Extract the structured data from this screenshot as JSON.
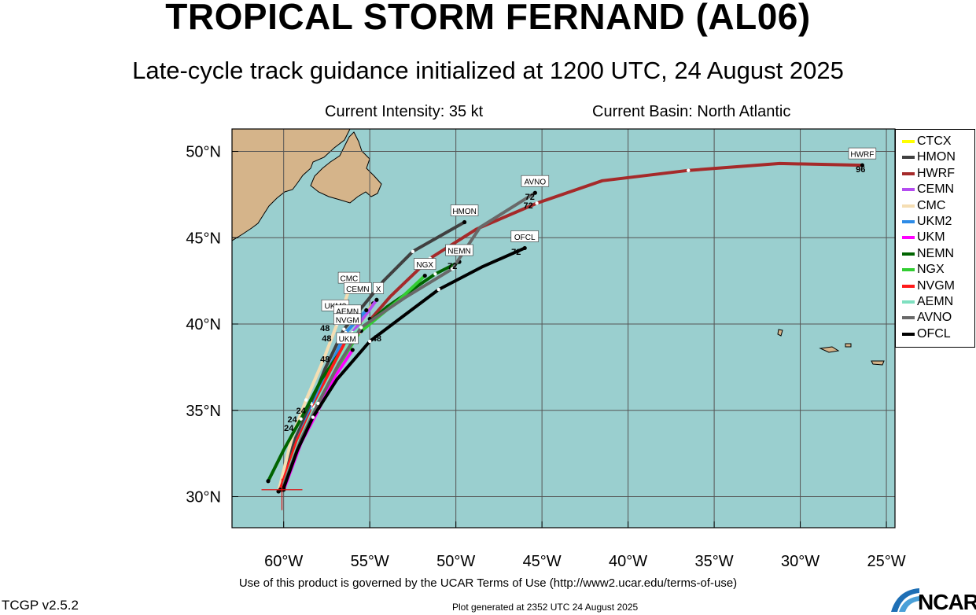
{
  "title": "TROPICAL STORM FERNAND (AL06)",
  "subtitle": "Late-cycle track guidance initialized at 1200 UTC, 24 August 2025",
  "current_intensity": "Current Intensity: 35 kt",
  "current_basin": "Current Basin: North Atlantic",
  "footer_terms": "Use of this product is governed by the UCAR Terms of Use (http://www2.ucar.edu/terms-of-use)",
  "version": "TCGP v2.5.2",
  "generated": "Plot generated at 2352 UTC   24 August 2025",
  "logo_text": "NCAR",
  "map": {
    "lon_range": [
      -63,
      -24.5
    ],
    "lat_range": [
      28.2,
      51.3
    ],
    "lat_ticks": [
      {
        "v": 30,
        "label": "30°N"
      },
      {
        "v": 35,
        "label": "35°N"
      },
      {
        "v": 40,
        "label": "40°N"
      },
      {
        "v": 45,
        "label": "45°N"
      },
      {
        "v": 50,
        "label": "50°N"
      }
    ],
    "lon_ticks": [
      {
        "v": -60,
        "label": "60°W"
      },
      {
        "v": -55,
        "label": "55°W"
      },
      {
        "v": -50,
        "label": "50°W"
      },
      {
        "v": -45,
        "label": "45°W"
      },
      {
        "v": -40,
        "label": "40°W"
      },
      {
        "v": -35,
        "label": "35°W"
      },
      {
        "v": -30,
        "label": "30°W"
      },
      {
        "v": -25,
        "label": "25°W"
      }
    ],
    "ocean_color": "#9acfcf",
    "land_color": "#d5b48a",
    "init_position": {
      "lon": -60.1,
      "lat": 30.4
    }
  },
  "models": [
    {
      "name": "CTCX",
      "color": "#ffff00",
      "track": [
        [
          -60.0,
          30.5
        ],
        [
          -59.2,
          33.2
        ],
        [
          -58.3,
          35.0
        ],
        [
          -57.2,
          37.5
        ],
        [
          -56.0,
          39.4
        ],
        [
          -54.8,
          41.2
        ]
      ]
    },
    {
      "name": "HMON",
      "color": "#404040",
      "track": [
        [
          -60.3,
          30.3
        ],
        [
          -59.3,
          33.4
        ],
        [
          -58.4,
          35.4
        ],
        [
          -57.6,
          37.4
        ],
        [
          -56.5,
          39.7
        ],
        [
          -54.2,
          42.5
        ],
        [
          -52.5,
          44.2
        ],
        [
          -49.5,
          45.9
        ]
      ],
      "label_hour": "72"
    },
    {
      "name": "HWRF",
      "color": "#a52a2a",
      "track": [
        [
          -60.2,
          30.4
        ],
        [
          -59.1,
          33.3
        ],
        [
          -58.0,
          35.3
        ],
        [
          -57.0,
          37.3
        ],
        [
          -55.8,
          39.3
        ],
        [
          -53.8,
          41.6
        ],
        [
          -51.5,
          43.8
        ],
        [
          -48.8,
          45.5
        ],
        [
          -45.3,
          47.0
        ],
        [
          -41.5,
          48.3
        ],
        [
          -36.5,
          48.9
        ],
        [
          -31.2,
          49.3
        ],
        [
          -26.4,
          49.2
        ]
      ],
      "label_hour": "96"
    },
    {
      "name": "CEMN",
      "color": "#b44cf0",
      "track": [
        [
          -60.0,
          30.5
        ],
        [
          -59.1,
          33.2
        ],
        [
          -58.2,
          35.2
        ],
        [
          -57.2,
          37.2
        ],
        [
          -56.0,
          39.5
        ],
        [
          -54.6,
          41.4
        ]
      ]
    },
    {
      "name": "CMC",
      "color": "#f5deb3",
      "track": [
        [
          -60.3,
          30.3
        ],
        [
          -59.5,
          33.5
        ],
        [
          -58.7,
          35.6
        ],
        [
          -57.7,
          37.9
        ],
        [
          -56.9,
          40.0
        ],
        [
          -56.2,
          42.0
        ]
      ]
    },
    {
      "name": "UKM2",
      "color": "#2e8be6",
      "track": [
        [
          -60.1,
          30.4
        ],
        [
          -59.2,
          33.3
        ],
        [
          -58.3,
          35.3
        ],
        [
          -57.4,
          37.3
        ],
        [
          -56.4,
          39.5
        ],
        [
          -55.2,
          40.8
        ]
      ]
    },
    {
      "name": "UKM",
      "color": "#ff00ff",
      "track": [
        [
          -60.0,
          30.4
        ],
        [
          -59.0,
          33.1
        ],
        [
          -58.0,
          35.0
        ],
        [
          -57.0,
          37.0
        ],
        [
          -56.0,
          38.5
        ]
      ]
    },
    {
      "name": "NEMN",
      "color": "#006400",
      "track": [
        [
          -60.9,
          30.9
        ],
        [
          -60.0,
          32.7
        ],
        [
          -59.0,
          34.5
        ],
        [
          -57.8,
          36.8
        ],
        [
          -56.3,
          39.0
        ],
        [
          -54.0,
          41.0
        ],
        [
          -51.2,
          42.9
        ],
        [
          -49.8,
          43.6
        ]
      ],
      "label_hour": "72"
    },
    {
      "name": "NGX",
      "color": "#32cd32",
      "track": [
        [
          -60.1,
          30.4
        ],
        [
          -59.2,
          33.2
        ],
        [
          -58.2,
          35.2
        ],
        [
          -57.0,
          37.3
        ],
        [
          -55.6,
          39.5
        ],
        [
          -53.3,
          41.4
        ],
        [
          -51.8,
          42.8
        ]
      ]
    },
    {
      "name": "NVGM",
      "color": "#ff1a1a",
      "track": [
        [
          -60.2,
          30.4
        ],
        [
          -59.2,
          33.3
        ],
        [
          -58.3,
          35.1
        ],
        [
          -57.4,
          37.1
        ],
        [
          -56.4,
          39.0
        ],
        [
          -55.5,
          39.6
        ]
      ]
    },
    {
      "name": "AEMN",
      "color": "#7fe0c0",
      "track": [
        [
          -60.1,
          30.4
        ],
        [
          -59.1,
          33.2
        ],
        [
          -58.2,
          35.2
        ],
        [
          -57.1,
          37.3
        ],
        [
          -56.0,
          39.4
        ],
        [
          -55.0,
          40.3
        ]
      ]
    },
    {
      "name": "AVNO",
      "color": "#696969",
      "track": [
        [
          -60.1,
          30.4
        ],
        [
          -59.0,
          33.3
        ],
        [
          -58.0,
          35.4
        ],
        [
          -56.8,
          37.7
        ],
        [
          -55.5,
          39.8
        ],
        [
          -53.0,
          41.5
        ],
        [
          -50.2,
          43.2
        ],
        [
          -48.6,
          45.6
        ],
        [
          -45.4,
          47.6
        ]
      ],
      "label_hour": "72"
    },
    {
      "name": "OFCL",
      "color": "#000000",
      "track": [
        [
          -60.0,
          30.5
        ],
        [
          -59.2,
          32.7
        ],
        [
          -58.3,
          34.6
        ],
        [
          -56.9,
          36.8
        ],
        [
          -55.0,
          39.0
        ],
        [
          -53.0,
          40.5
        ],
        [
          -51.0,
          42.0
        ],
        [
          -48.5,
          43.3
        ],
        [
          -46.0,
          44.4
        ]
      ],
      "label_hour": "72"
    }
  ],
  "track_labels": [
    {
      "text": "HWRF",
      "lon": -26.4,
      "lat": 49.2
    },
    {
      "text": "AVNO",
      "lon": -45.4,
      "lat": 47.6
    },
    {
      "text": "HMON",
      "lon": -49.5,
      "lat": 45.9
    },
    {
      "text": "OFCL",
      "lon": -46.0,
      "lat": 44.4
    },
    {
      "text": "NEMN",
      "lon": -49.8,
      "lat": 43.6
    },
    {
      "text": "NGX",
      "lon": -51.8,
      "lat": 42.8
    },
    {
      "text": "CMC",
      "lon": -56.2,
      "lat": 42.0
    },
    {
      "text": "CEMN",
      "lon": -55.7,
      "lat": 41.4
    },
    {
      "text": "X",
      "lon": -54.5,
      "lat": 41.4
    },
    {
      "text": "UKM2",
      "lon": -57.0,
      "lat": 40.4
    },
    {
      "text": "AEMN",
      "lon": -56.3,
      "lat": 40.1
    },
    {
      "text": "NVGM",
      "lon": -56.3,
      "lat": 39.6
    },
    {
      "text": "UKM",
      "lon": -56.3,
      "lat": 38.5
    }
  ],
  "hour_labels": [
    {
      "text": "96",
      "lon": -26.5,
      "lat": 48.8
    },
    {
      "text": "72",
      "lon": -45.7,
      "lat": 47.2
    },
    {
      "text": "72",
      "lon": -45.8,
      "lat": 46.7
    },
    {
      "text": "72",
      "lon": -46.5,
      "lat": 44.0
    },
    {
      "text": "72",
      "lon": -50.2,
      "lat": 43.2
    },
    {
      "text": "48",
      "lon": -57.6,
      "lat": 39.6
    },
    {
      "text": "48",
      "lon": -57.5,
      "lat": 39.0
    },
    {
      "text": "48",
      "lon": -54.6,
      "lat": 39.0
    },
    {
      "text": "48",
      "lon": -57.6,
      "lat": 37.8
    },
    {
      "text": "24",
      "lon": -59.0,
      "lat": 34.8
    },
    {
      "text": "24",
      "lon": -59.5,
      "lat": 34.3
    },
    {
      "text": "24",
      "lon": -59.7,
      "lat": 33.8
    }
  ]
}
